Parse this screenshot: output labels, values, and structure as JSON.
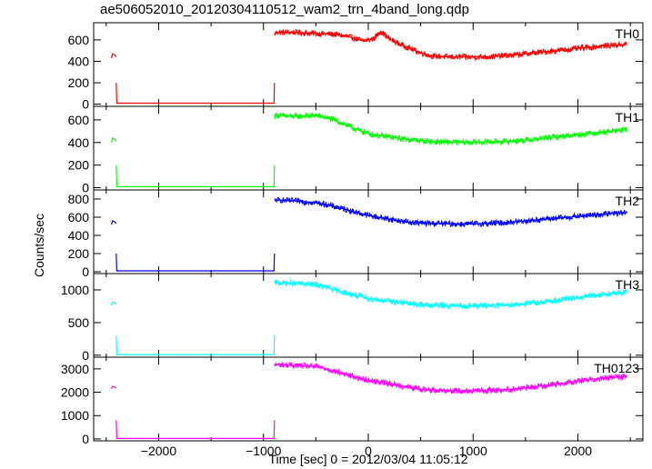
{
  "title": "ae506052010_20120304110512_wam2_trn_4band_long.qdp",
  "ylabel": "Counts/sec",
  "xlabel": "Time [sec] 0 = 2012/03/04 11:05:12",
  "chart_data": {
    "type": "line",
    "layout": "stacked panels sharing x axis",
    "xlim": [
      -2620,
      2620
    ],
    "xticks": [
      -2000,
      -1000,
      0,
      1000,
      2000
    ],
    "xlabel": "Time [sec] 0 = 2012/03/04 11:05:12",
    "ylabel": "Counts/sec",
    "panels": [
      {
        "name": "TH0",
        "color": "#ff0000",
        "ylim": [
          -20,
          760
        ],
        "yticks": [
          0,
          200,
          400,
          600
        ],
        "series": [
          {
            "x": [
              -2450,
              -2440,
              -2420,
              -2410,
              -2405
            ],
            "y": [
              430,
              470,
              460,
              450,
              440
            ]
          },
          {
            "x": [
              -2405,
              -2400,
              -1000,
              -900,
              -895
            ],
            "y": [
              200,
              10,
              10,
              10,
              200
            ]
          },
          {
            "x": [
              -895,
              -880,
              -700,
              -500,
              -300,
              -150,
              -50,
              50,
              120,
              200,
              300,
              400,
              500,
              600,
              800,
              1000,
              1200,
              1400,
              1600,
              1800,
              2000,
              2200,
              2400,
              2470
            ],
            "y": [
              650,
              670,
              670,
              660,
              650,
              620,
              590,
              610,
              680,
              610,
              560,
              520,
              480,
              450,
              440,
              440,
              445,
              460,
              480,
              500,
              520,
              540,
              555,
              560
            ]
          }
        ]
      },
      {
        "name": "TH1",
        "color": "#00ff00",
        "ylim": [
          -20,
          720
        ],
        "yticks": [
          0,
          200,
          400,
          600
        ],
        "series": [
          {
            "x": [
              -2450,
              -2440,
              -2420,
              -2410,
              -2405
            ],
            "y": [
              400,
              440,
              430,
              420,
              410
            ]
          },
          {
            "x": [
              -2405,
              -2400,
              -1000,
              -900,
              -895
            ],
            "y": [
              200,
              10,
              10,
              10,
              200
            ]
          },
          {
            "x": [
              -895,
              -880,
              -700,
              -500,
              -400,
              -300,
              -200,
              -100,
              0,
              100,
              200,
              300,
              400,
              500,
              700,
              900,
              1100,
              1300,
              1500,
              1700,
              1900,
              2100,
              2300,
              2470
            ],
            "y": [
              640,
              640,
              630,
              640,
              620,
              590,
              550,
              510,
              480,
              460,
              450,
              435,
              425,
              415,
              405,
              400,
              405,
              410,
              420,
              440,
              460,
              480,
              500,
              515
            ]
          }
        ]
      },
      {
        "name": "TH2",
        "color": "#0000ff",
        "ylim": [
          -20,
          900
        ],
        "yticks": [
          0,
          200,
          400,
          600,
          800
        ],
        "series": [
          {
            "x": [
              -2450,
              -2440,
              -2420,
              -2410,
              -2405
            ],
            "y": [
              520,
              560,
              550,
              540,
              530
            ]
          },
          {
            "x": [
              -2405,
              -2400,
              -1000,
              -900,
              -895
            ],
            "y": [
              200,
              10,
              10,
              10,
              200
            ]
          },
          {
            "x": [
              -895,
              -880,
              -700,
              -500,
              -400,
              -300,
              -200,
              -100,
              0,
              100,
              200,
              300,
              400,
              500,
              700,
              900,
              1100,
              1300,
              1500,
              1700,
              1900,
              2100,
              2300,
              2470
            ],
            "y": [
              780,
              790,
              780,
              760,
              740,
              710,
              680,
              650,
              620,
              600,
              580,
              560,
              545,
              535,
              530,
              525,
              530,
              540,
              560,
              580,
              600,
              620,
              640,
              650
            ]
          }
        ]
      },
      {
        "name": "TH3",
        "color": "#00ffff",
        "ylim": [
          -30,
          1250
        ],
        "yticks": [
          0,
          500,
          1000
        ],
        "series": [
          {
            "x": [
              -2450,
              -2440,
              -2420,
              -2410,
              -2405
            ],
            "y": [
              760,
              810,
              800,
              790,
              780
            ]
          },
          {
            "x": [
              -2405,
              -2400,
              -1000,
              -900,
              -895
            ],
            "y": [
              300,
              10,
              10,
              10,
              300
            ]
          },
          {
            "x": [
              -895,
              -880,
              -700,
              -500,
              -400,
              -300,
              -200,
              -100,
              0,
              100,
              200,
              300,
              400,
              500,
              700,
              900,
              1100,
              1300,
              1500,
              1700,
              1900,
              2100,
              2300,
              2470
            ],
            "y": [
              1110,
              1110,
              1100,
              1080,
              1040,
              990,
              950,
              910,
              870,
              850,
              830,
              810,
              790,
              775,
              760,
              755,
              760,
              770,
              790,
              820,
              860,
              900,
              940,
              960
            ]
          }
        ]
      },
      {
        "name": "TH0123",
        "color": "#ff00ff",
        "ylim": [
          -80,
          3500
        ],
        "yticks": [
          0,
          1000,
          2000,
          3000
        ],
        "series": [
          {
            "x": [
              -2450,
              -2440,
              -2420,
              -2410,
              -2405
            ],
            "y": [
              2150,
              2250,
              2220,
              2200,
              2180
            ]
          },
          {
            "x": [
              -2405,
              -2400,
              -1000,
              -900,
              -895
            ],
            "y": [
              800,
              20,
              20,
              20,
              800
            ]
          },
          {
            "x": [
              -895,
              -880,
              -700,
              -500,
              -400,
              -300,
              -200,
              -100,
              0,
              100,
              200,
              300,
              400,
              500,
              700,
              900,
              1100,
              1300,
              1500,
              1700,
              1900,
              2100,
              2300,
              2470
            ],
            "y": [
              3150,
              3180,
              3150,
              3100,
              3000,
              2870,
              2750,
              2620,
              2520,
              2450,
              2380,
              2280,
              2200,
              2130,
              2080,
              2060,
              2070,
              2100,
              2180,
              2300,
              2420,
              2540,
              2630,
              2680
            ]
          }
        ]
      }
    ]
  }
}
